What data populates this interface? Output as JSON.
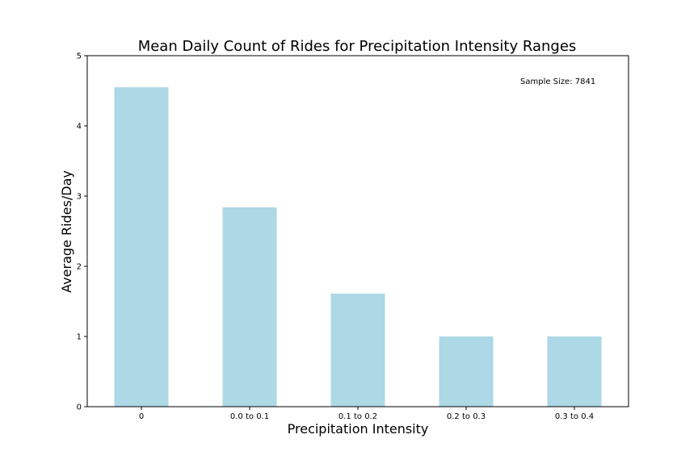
{
  "chart_data": {
    "type": "bar",
    "title": "Mean Daily Count of Rides for Precipitation Intensity Ranges",
    "xlabel": "Precipitation Intensity",
    "ylabel": "Average Rides/Day",
    "categories": [
      "0",
      "0.0 to 0.1",
      "0.1 to 0.2",
      "0.2 to 0.3",
      "0.3 to 0.4"
    ],
    "values": [
      4.55,
      2.84,
      1.61,
      1.0,
      1.0
    ],
    "ylim": [
      0,
      5
    ],
    "yticks": [
      "0",
      "1",
      "2",
      "3",
      "4",
      "5"
    ],
    "annotation": "Sample Size: 7841",
    "bar_color": "#add8e6",
    "grid": false,
    "legend": "none"
  }
}
